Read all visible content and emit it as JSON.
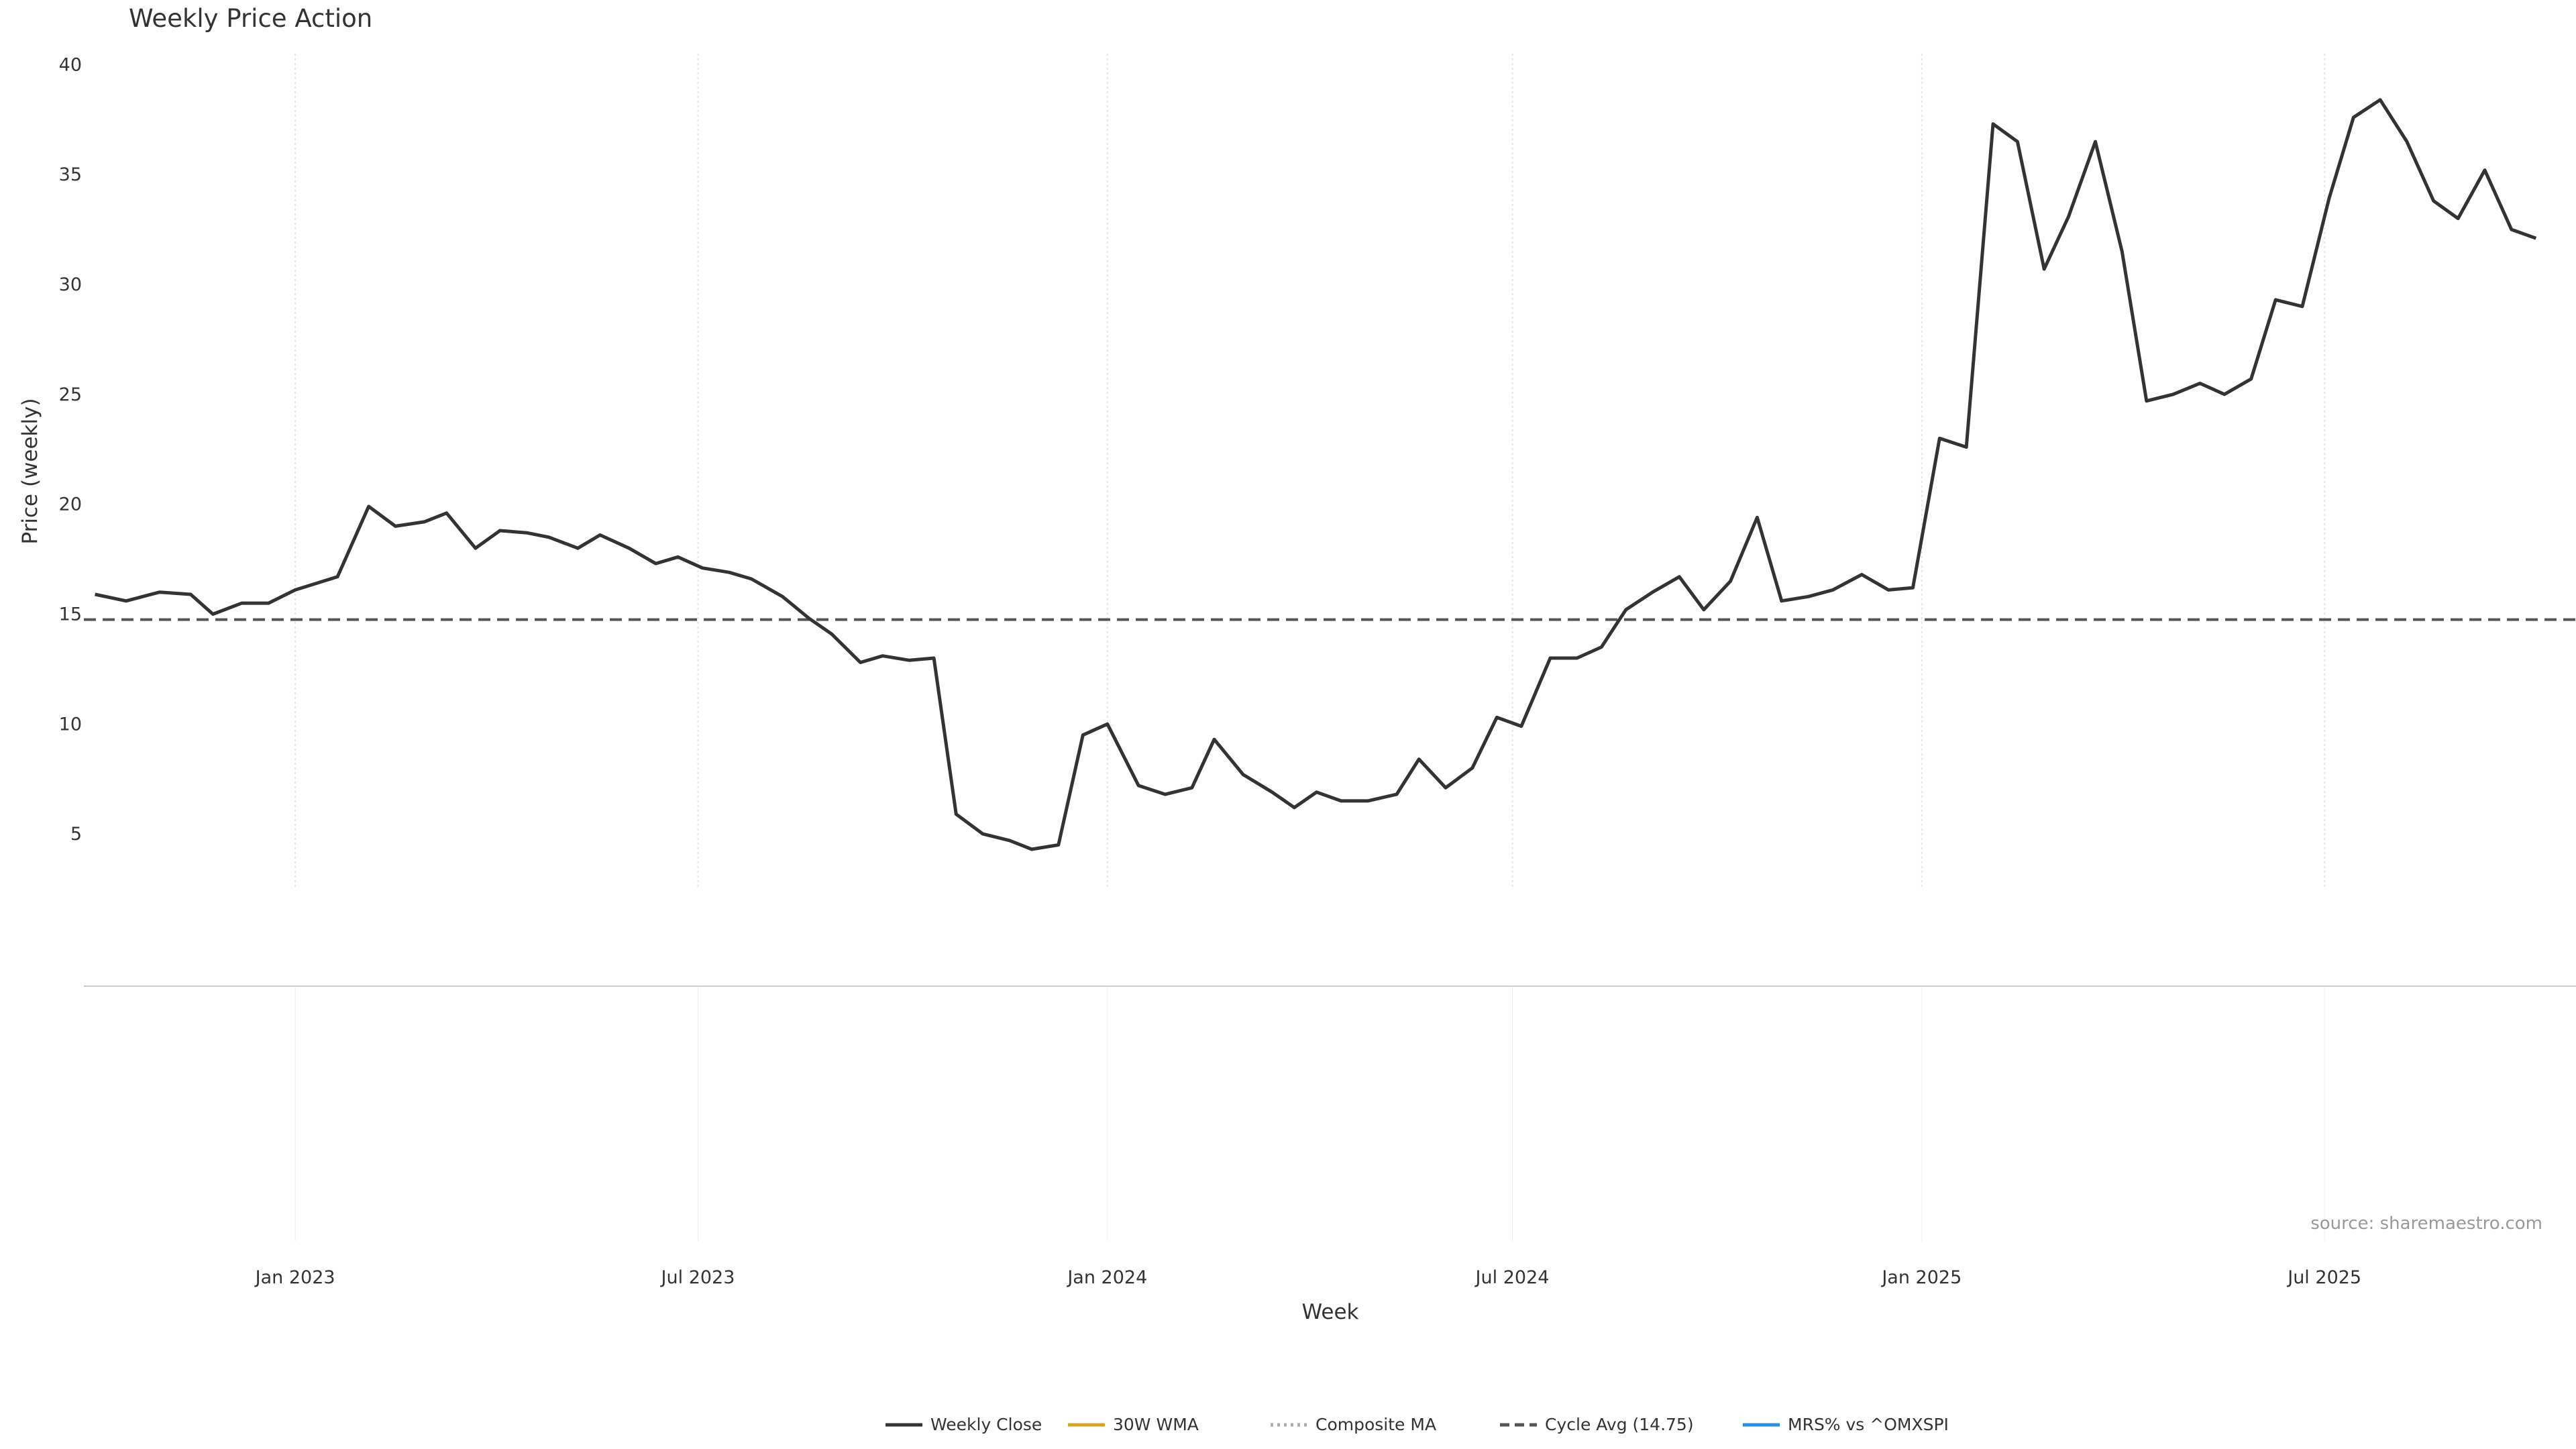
{
  "page": {
    "source": "source: sharemaestro.com"
  },
  "legend": {
    "items": [
      {
        "label": "Weekly Close",
        "color": "#333333",
        "style": "solid"
      },
      {
        "label": "30W WMA",
        "color": "#d4a52a",
        "style": "solid"
      },
      {
        "label": "Composite MA",
        "color": "#aaaaaa",
        "style": "dotted"
      },
      {
        "label": "Cycle Avg (14.75)",
        "color": "#555555",
        "style": "dashed"
      },
      {
        "label": "MRS% vs ^OMXSPI",
        "color": "#2a8ee0",
        "style": "solid"
      }
    ]
  },
  "chart_data": [
    {
      "type": "line",
      "title": "Weekly Price Action",
      "ylabel": "Price (weekly)",
      "xlabel": "",
      "ylim": [
        2.5,
        40.5
      ],
      "xlim": [
        "2022-10-03",
        "2025-10-20"
      ],
      "yticks": [
        5,
        10,
        15,
        20,
        25,
        30,
        35,
        40
      ],
      "xticks": [
        {
          "date": "2023-01-01",
          "label": "Jan 2023"
        },
        {
          "date": "2023-07-01",
          "label": "Jul 2023"
        },
        {
          "date": "2024-01-01",
          "label": "Jan 2024"
        },
        {
          "date": "2024-07-01",
          "label": "Jul 2024"
        },
        {
          "date": "2025-01-01",
          "label": "Jan 2025"
        },
        {
          "date": "2025-07-01",
          "label": "Jul 2025"
        }
      ],
      "grid": "x",
      "reference_line": {
        "name": "Cycle Avg (14.75)",
        "value": 14.75,
        "style": "dashed",
        "color": "#555555"
      },
      "series": [
        {
          "name": "Weekly Close",
          "color": "#333333",
          "points": [
            [
              "2022-10-03",
              15.9
            ],
            [
              "2022-10-17",
              15.6
            ],
            [
              "2022-11-01",
              16.0
            ],
            [
              "2022-11-15",
              15.9
            ],
            [
              "2022-11-25",
              15.0
            ],
            [
              "2022-12-08",
              15.5
            ],
            [
              "2022-12-20",
              15.5
            ],
            [
              "2023-01-01",
              16.1
            ],
            [
              "2023-01-20",
              16.7
            ],
            [
              "2023-02-03",
              19.9
            ],
            [
              "2023-02-15",
              19.0
            ],
            [
              "2023-02-28",
              19.2
            ],
            [
              "2023-03-10",
              19.6
            ],
            [
              "2023-03-23",
              18.0
            ],
            [
              "2023-04-03",
              18.8
            ],
            [
              "2023-04-15",
              18.7
            ],
            [
              "2023-04-25",
              18.5
            ],
            [
              "2023-05-08",
              18.0
            ],
            [
              "2023-05-18",
              18.6
            ],
            [
              "2023-05-31",
              18.0
            ],
            [
              "2023-06-12",
              17.3
            ],
            [
              "2023-06-22",
              17.6
            ],
            [
              "2023-07-03",
              17.1
            ],
            [
              "2023-07-15",
              16.9
            ],
            [
              "2023-07-25",
              16.6
            ],
            [
              "2023-08-08",
              15.8
            ],
            [
              "2023-08-20",
              14.8
            ],
            [
              "2023-08-30",
              14.1
            ],
            [
              "2023-09-12",
              12.8
            ],
            [
              "2023-09-22",
              13.1
            ],
            [
              "2023-10-04",
              12.9
            ],
            [
              "2023-10-15",
              13.0
            ],
            [
              "2023-10-25",
              5.9
            ],
            [
              "2023-11-06",
              5.0
            ],
            [
              "2023-11-18",
              4.7
            ],
            [
              "2023-11-28",
              4.3
            ],
            [
              "2023-12-10",
              4.5
            ],
            [
              "2023-12-21",
              9.5
            ],
            [
              "2024-01-01",
              10.0
            ],
            [
              "2024-01-15",
              7.2
            ],
            [
              "2024-01-27",
              6.8
            ],
            [
              "2024-02-08",
              7.1
            ],
            [
              "2024-02-18",
              9.3
            ],
            [
              "2024-03-02",
              7.7
            ],
            [
              "2024-03-15",
              6.9
            ],
            [
              "2024-03-25",
              6.2
            ],
            [
              "2024-04-04",
              6.9
            ],
            [
              "2024-04-15",
              6.5
            ],
            [
              "2024-04-27",
              6.5
            ],
            [
              "2024-05-10",
              6.8
            ],
            [
              "2024-05-20",
              8.4
            ],
            [
              "2024-06-01",
              7.1
            ],
            [
              "2024-06-13",
              8.0
            ],
            [
              "2024-06-24",
              10.3
            ],
            [
              "2024-07-05",
              9.9
            ],
            [
              "2024-07-18",
              13.0
            ],
            [
              "2024-07-30",
              13.0
            ],
            [
              "2024-08-10",
              13.5
            ],
            [
              "2024-08-21",
              15.2
            ],
            [
              "2024-09-02",
              16.0
            ],
            [
              "2024-09-14",
              16.7
            ],
            [
              "2024-09-25",
              15.2
            ],
            [
              "2024-10-07",
              16.5
            ],
            [
              "2024-10-19",
              19.4
            ],
            [
              "2024-10-30",
              15.6
            ],
            [
              "2024-11-11",
              15.8
            ],
            [
              "2024-11-22",
              16.1
            ],
            [
              "2024-12-05",
              16.8
            ],
            [
              "2024-12-17",
              16.1
            ],
            [
              "2024-12-28",
              16.2
            ],
            [
              "2025-01-09",
              23.0
            ],
            [
              "2025-01-21",
              22.6
            ],
            [
              "2025-02-02",
              37.3
            ],
            [
              "2025-02-13",
              36.5
            ],
            [
              "2025-02-25",
              30.7
            ],
            [
              "2025-03-08",
              33.1
            ],
            [
              "2025-03-20",
              36.5
            ],
            [
              "2025-04-01",
              31.5
            ],
            [
              "2025-04-12",
              24.7
            ],
            [
              "2025-04-24",
              25.0
            ],
            [
              "2025-05-06",
              25.5
            ],
            [
              "2025-05-17",
              25.0
            ],
            [
              "2025-05-29",
              25.7
            ],
            [
              "2025-06-09",
              29.3
            ],
            [
              "2025-06-21",
              29.0
            ],
            [
              "2025-07-03",
              33.9
            ],
            [
              "2025-07-14",
              37.6
            ],
            [
              "2025-07-26",
              38.4
            ],
            [
              "2025-08-07",
              36.5
            ],
            [
              "2025-08-19",
              33.8
            ],
            [
              "2025-08-30",
              33.0
            ],
            [
              "2025-09-11",
              35.2
            ],
            [
              "2025-09-23",
              32.5
            ],
            [
              "2025-10-04",
              32.1
            ]
          ]
        }
      ]
    }
  ]
}
